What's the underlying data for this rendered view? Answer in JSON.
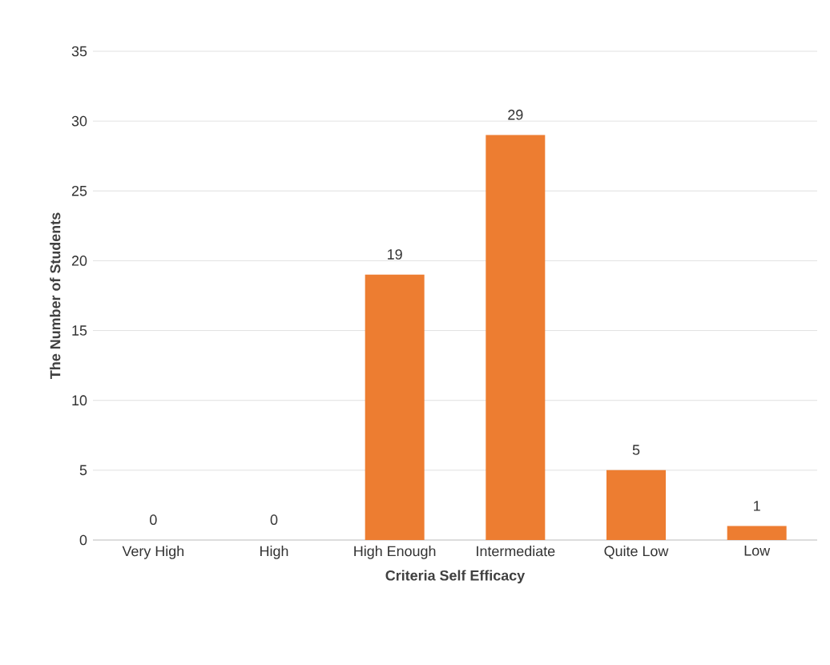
{
  "chart_data": {
    "type": "bar",
    "xlabel": "Criteria Self Efficacy",
    "ylabel": "The Number of Students",
    "categories": [
      "Very High",
      "High",
      "High Enough",
      "Intermediate",
      "Quite Low",
      "Low"
    ],
    "values": [
      0,
      0,
      19,
      29,
      5,
      1
    ],
    "color": "#ed7d31",
    "ylim": [
      0,
      35
    ],
    "yticks": [
      0,
      5,
      10,
      15,
      20,
      25,
      30,
      35
    ],
    "grid": "y",
    "data_labels": true
  }
}
